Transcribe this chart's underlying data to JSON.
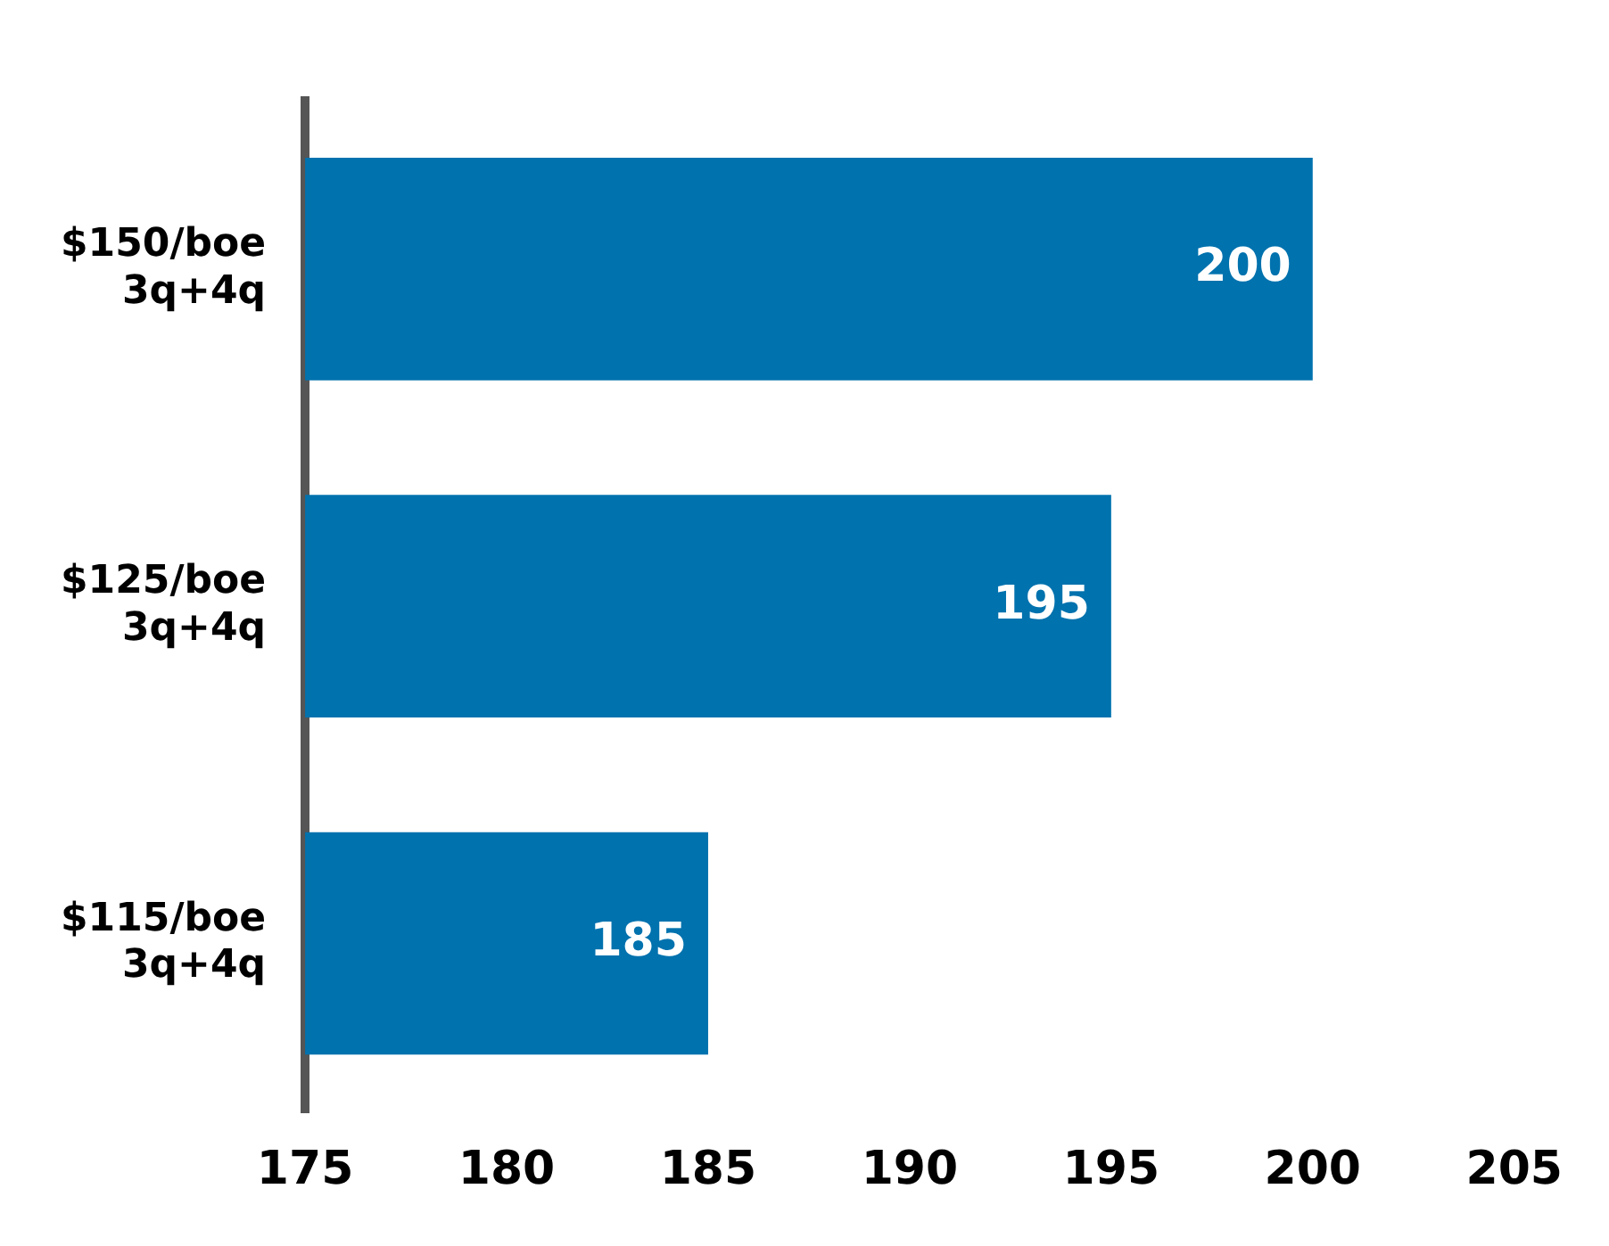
{
  "chart_data": {
    "type": "bar",
    "orientation": "horizontal",
    "categories": [
      "$150/boe\n3q+4q",
      "$125/boe\n3q+4q",
      "$115/boe\n3q+4q"
    ],
    "values": [
      200,
      195,
      185
    ],
    "color": "#0072ae",
    "xlim": [
      175,
      205
    ],
    "xticks": [
      175,
      180,
      185,
      190,
      195,
      200,
      205
    ],
    "grid": false,
    "legend": false,
    "data_labels": true
  }
}
